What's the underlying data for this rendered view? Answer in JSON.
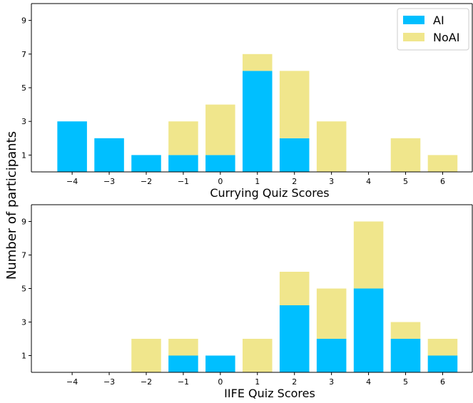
{
  "colors": {
    "AI": "#00bfff",
    "NoAI": "#f0e68c",
    "axis": "#000000"
  },
  "shared_ylabel": "Number of participants",
  "legend": {
    "items": [
      "AI",
      "NoAI"
    ],
    "placement": "top-right"
  },
  "chart_data": [
    {
      "type": "bar",
      "stacked": true,
      "xlabel": "Currying Quiz Scores",
      "x": [
        -4,
        -3,
        -2,
        -1,
        0,
        1,
        2,
        3,
        4,
        5,
        6
      ],
      "x_tick_labels": [
        "−4",
        "−3",
        "−2",
        "−1",
        "0",
        "1",
        "2",
        "3",
        "4",
        "5",
        "6"
      ],
      "series": [
        {
          "name": "AI",
          "values": [
            3,
            2,
            1,
            1,
            1,
            6,
            2,
            0,
            0,
            0,
            0
          ]
        },
        {
          "name": "NoAI",
          "values": [
            0,
            0,
            0,
            2,
            3,
            1,
            4,
            3,
            0,
            2,
            1
          ]
        }
      ],
      "ylim": [
        0,
        10
      ],
      "y_ticks": [
        1,
        3,
        5,
        7,
        9
      ],
      "grid": false
    },
    {
      "type": "bar",
      "stacked": true,
      "xlabel": "IIFE Quiz Scores",
      "x": [
        -4,
        -3,
        -2,
        -1,
        0,
        1,
        2,
        3,
        4,
        5,
        6
      ],
      "x_tick_labels": [
        "−4",
        "−3",
        "−2",
        "−1",
        "0",
        "1",
        "2",
        "3",
        "4",
        "5",
        "6"
      ],
      "series": [
        {
          "name": "AI",
          "values": [
            0,
            0,
            0,
            1,
            1,
            0,
            4,
            2,
            5,
            2,
            1
          ]
        },
        {
          "name": "NoAI",
          "values": [
            0,
            0,
            2,
            1,
            0,
            2,
            2,
            3,
            4,
            1,
            1
          ]
        }
      ],
      "ylim": [
        0,
        10
      ],
      "y_ticks": [
        1,
        3,
        5,
        7,
        9
      ],
      "grid": false
    }
  ]
}
